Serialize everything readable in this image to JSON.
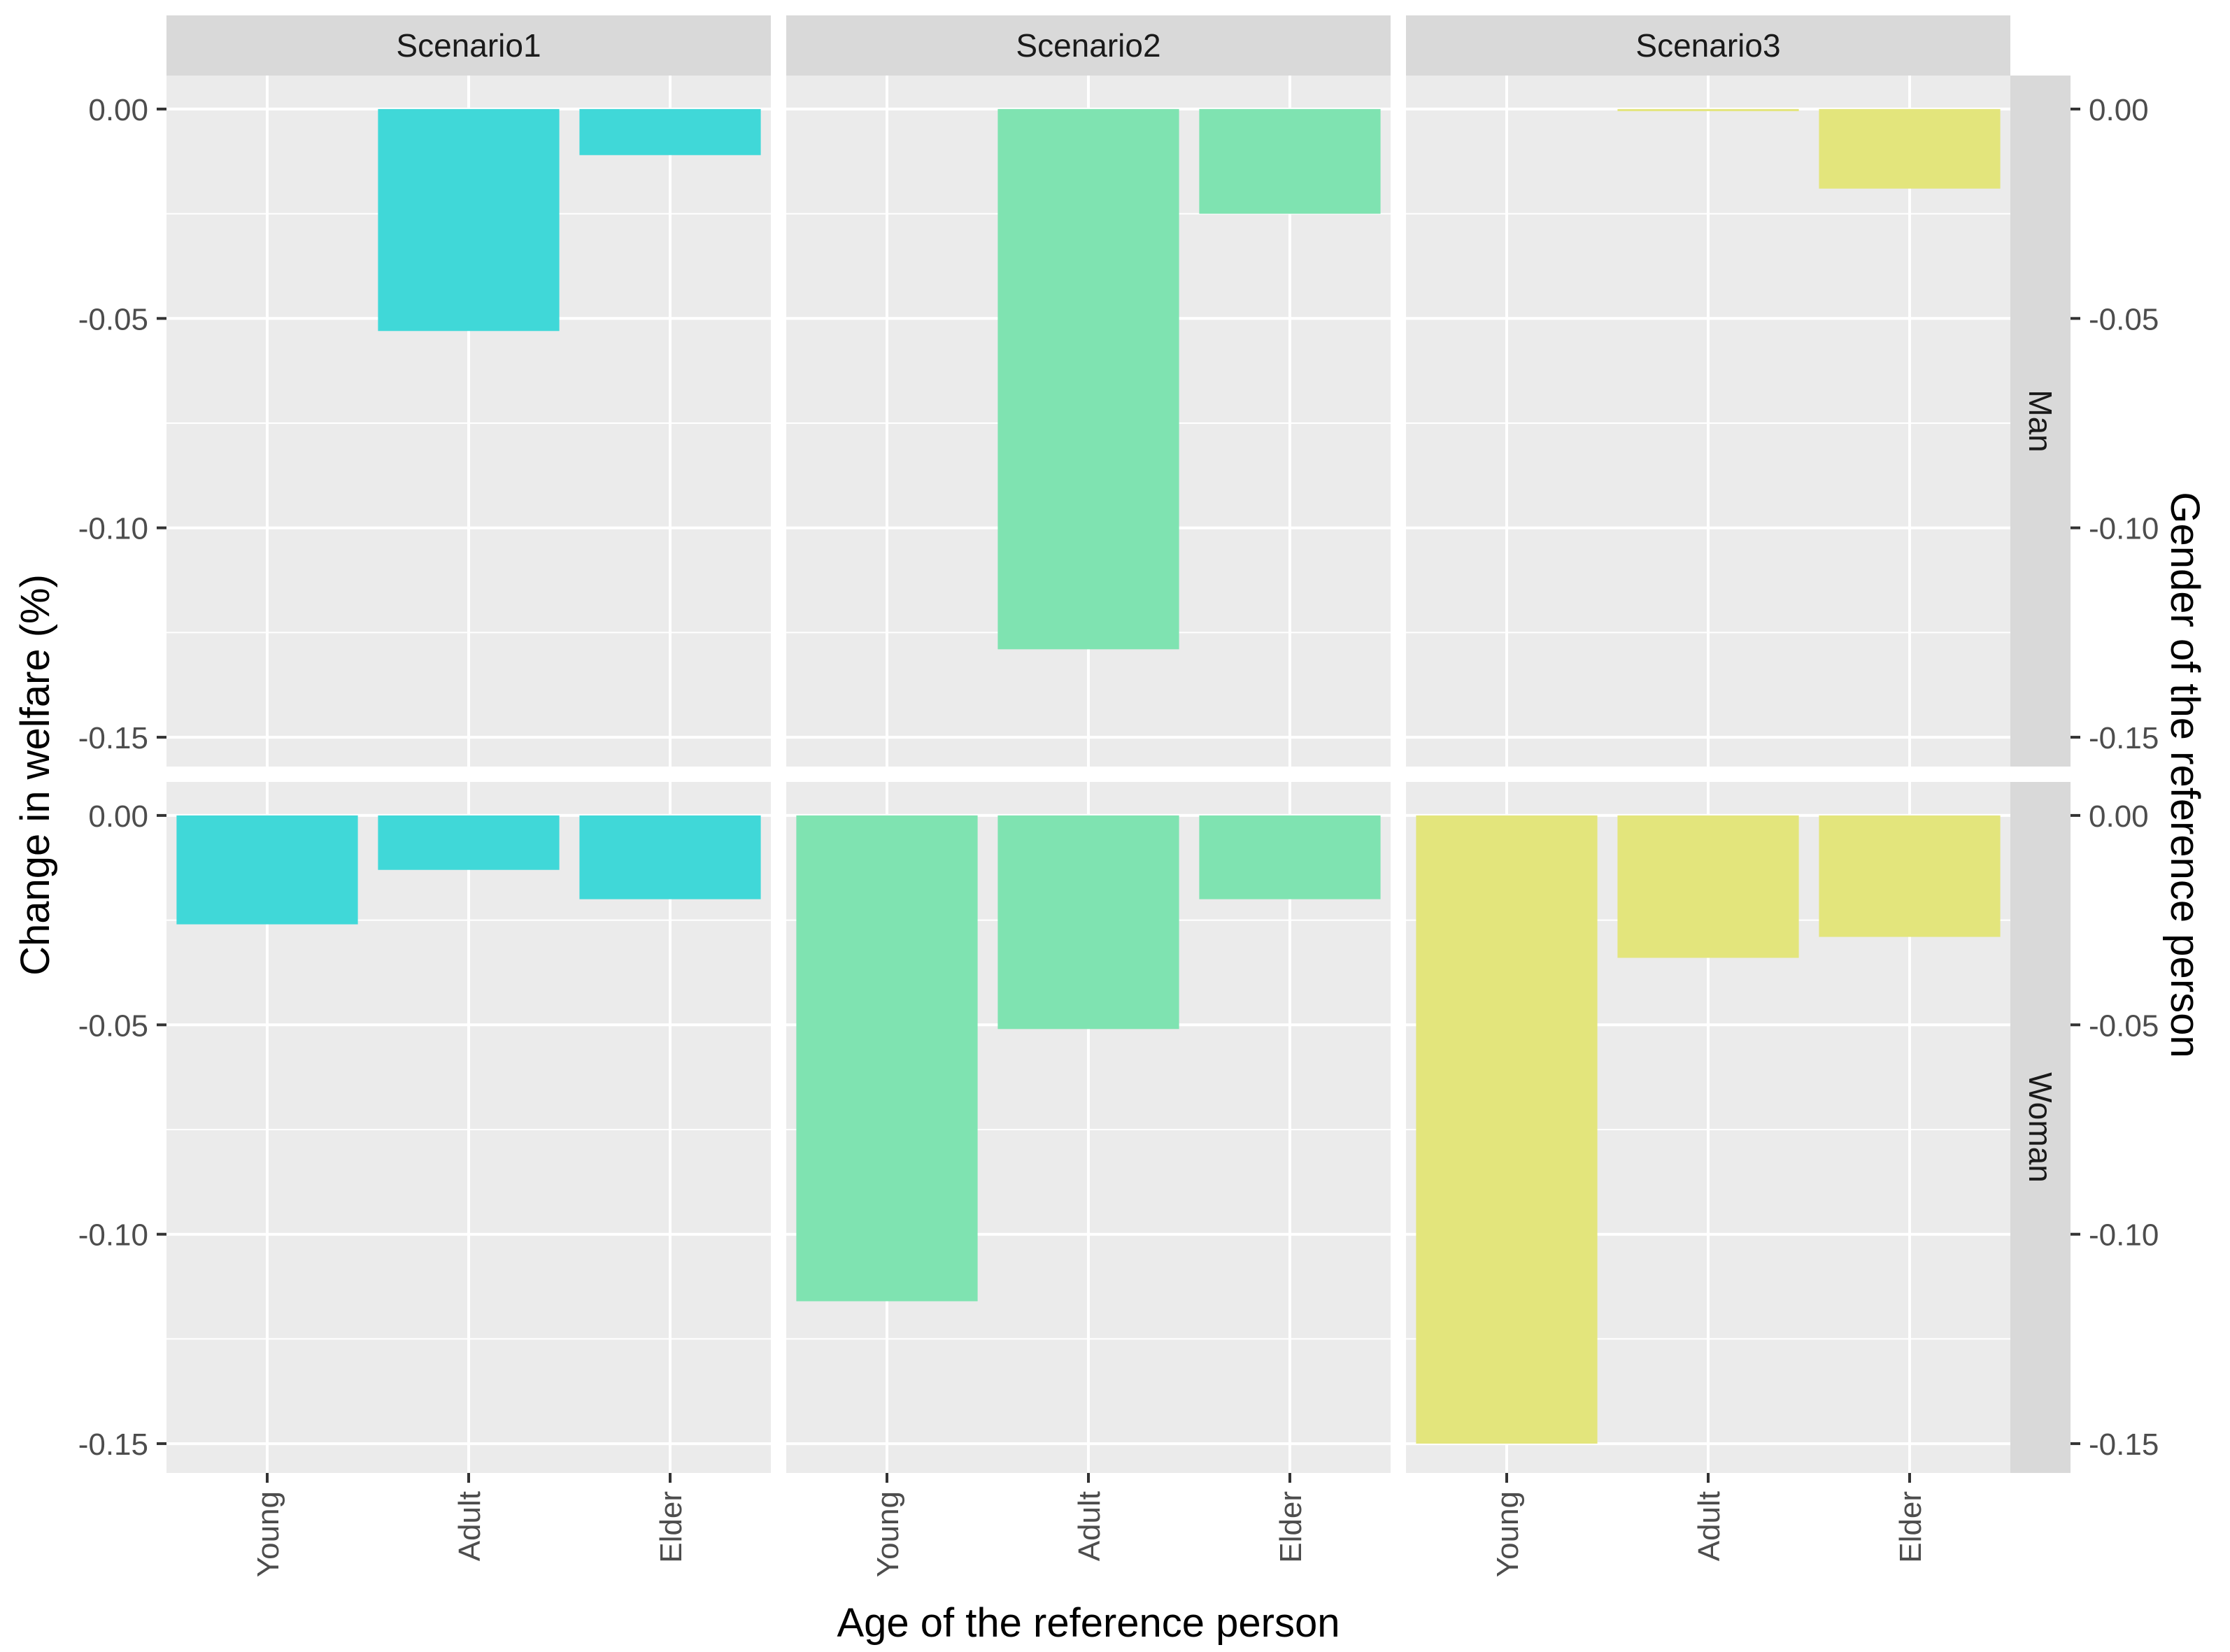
{
  "chart_data": {
    "type": "bar",
    "facet_columns": [
      "Scenario1",
      "Scenario2",
      "Scenario3"
    ],
    "facet_rows": [
      "Man",
      "Woman"
    ],
    "categories": [
      "Young",
      "Adult",
      "Elder"
    ],
    "xlabel": "Age of the reference person",
    "ylabel": "Change in welfare (%)",
    "right_label": "Gender of the reference person",
    "ylim": [
      -0.157,
      0.008
    ],
    "y_ticks": [
      0.0,
      -0.05,
      -0.1,
      -0.15
    ],
    "y_tick_labels": [
      "0.00",
      "-0.05",
      "-0.10",
      "-0.15"
    ],
    "grid": true,
    "colors": {
      "Scenario1": "#40D8D8",
      "Scenario2": "#7FE3B1",
      "Scenario3": "#E3E57C",
      "panel_bg": "#EBEBEB",
      "strip_bg": "#D9D9D9",
      "grid_line": "#FFFFFF"
    },
    "values": {
      "Man": {
        "Scenario1": [
          0.0,
          -0.053,
          -0.011
        ],
        "Scenario2": [
          0.0,
          -0.129,
          -0.025
        ],
        "Scenario3": [
          0.0,
          -0.0005,
          -0.019
        ]
      },
      "Woman": {
        "Scenario1": [
          -0.026,
          -0.013,
          -0.02
        ],
        "Scenario2": [
          -0.116,
          -0.051,
          -0.02
        ],
        "Scenario3": [
          -0.15,
          -0.034,
          -0.029
        ]
      }
    }
  }
}
